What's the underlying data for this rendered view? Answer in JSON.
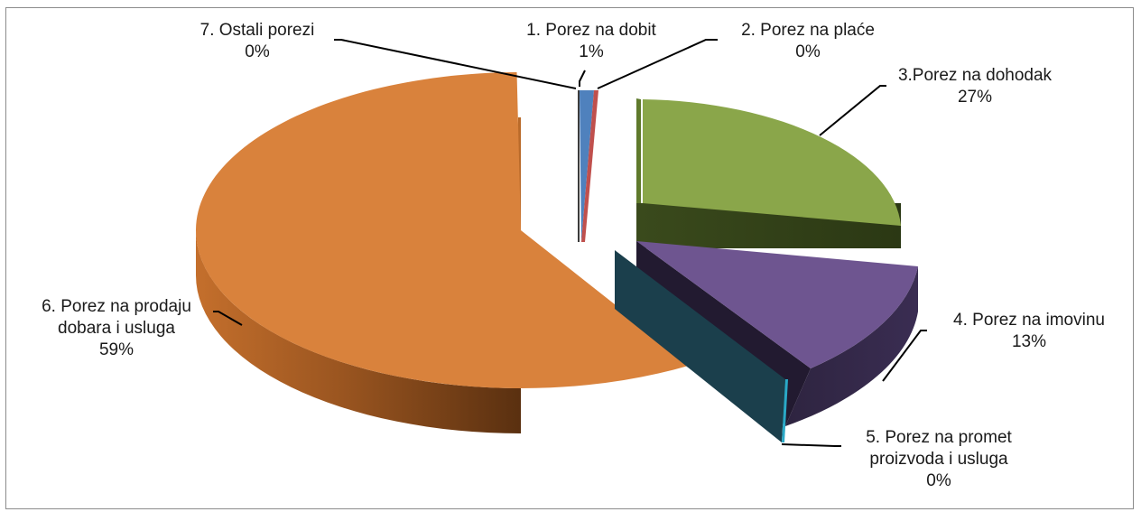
{
  "colors": {
    "porez_na_dobit": "#4f81bd",
    "porez_na_place": "#c0504d",
    "porez_na_dohodak": "#8aa64a",
    "porez_na_imovinu": "#6e5590",
    "porez_na_promet": "#1b3f4c",
    "porez_na_prodaju": "#d9823c",
    "ostali_porezi": "#3c3c3c",
    "frame": "#8c8c8c"
  },
  "chart_data": {
    "type": "pie",
    "style": "3d-exploded",
    "slices": [
      {
        "key": "s1",
        "label": "1.  Porez na dobit",
        "lines": [
          "1.  Porez na dobit"
        ],
        "value": 1,
        "pct": "1%"
      },
      {
        "key": "s2",
        "label": "2.  Porez na plaće",
        "lines": [
          "2.  Porez na plaće"
        ],
        "value": 0.3,
        "pct": "0%"
      },
      {
        "key": "s3",
        "label": "3.Porez na dohodak",
        "lines": [
          "3.Porez na dohodak"
        ],
        "value": 27,
        "pct": "27%"
      },
      {
        "key": "s4",
        "label": "4.  Porez na imovinu",
        "lines": [
          "4.  Porez na imovinu"
        ],
        "value": 13,
        "pct": "13%"
      },
      {
        "key": "s5",
        "label": "5.  Porez na promet proizvoda i usluga",
        "lines": [
          "5.  Porez na promet",
          "proizvoda i usluga"
        ],
        "value": 0.2,
        "pct": "0%"
      },
      {
        "key": "s6",
        "label": "6. Porez na prodaju dobara i usluga",
        "lines": [
          "6. Porez na prodaju",
          "dobara i usluga"
        ],
        "value": 59,
        "pct": "59%"
      },
      {
        "key": "s7",
        "label": "7.  Ostali porezi",
        "lines": [
          "7.  Ostali porezi"
        ],
        "value": 0.2,
        "pct": "0%"
      }
    ]
  }
}
